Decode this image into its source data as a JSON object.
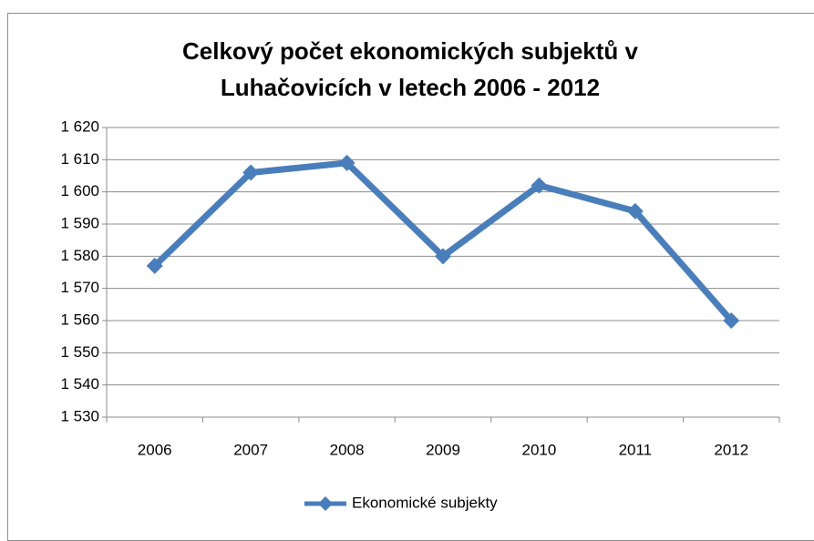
{
  "chart_data": {
    "type": "line",
    "title": "Celkový počet ekonomických subjektů v Luhačovicích v letech 2006 - 2012",
    "categories": [
      "2006",
      "2007",
      "2008",
      "2009",
      "2010",
      "2011",
      "2012"
    ],
    "series": [
      {
        "name": "Ekonomické subjekty",
        "color": "#4a7ebb",
        "values": [
          1577,
          1606,
          1609,
          1580,
          1602,
          1594,
          1560
        ]
      }
    ],
    "ylim": [
      1530,
      1620
    ],
    "yticks": [
      {
        "value": 1530,
        "label": "1 530"
      },
      {
        "value": 1540,
        "label": "1 540"
      },
      {
        "value": 1550,
        "label": "1 550"
      },
      {
        "value": 1560,
        "label": "1 560"
      },
      {
        "value": 1570,
        "label": "1 570"
      },
      {
        "value": 1580,
        "label": "1 580"
      },
      {
        "value": 1590,
        "label": "1 590"
      },
      {
        "value": 1600,
        "label": "1 600"
      },
      {
        "value": 1610,
        "label": "1 610"
      },
      {
        "value": 1620,
        "label": "1 620"
      }
    ],
    "grid": true,
    "legend": "bottom"
  }
}
